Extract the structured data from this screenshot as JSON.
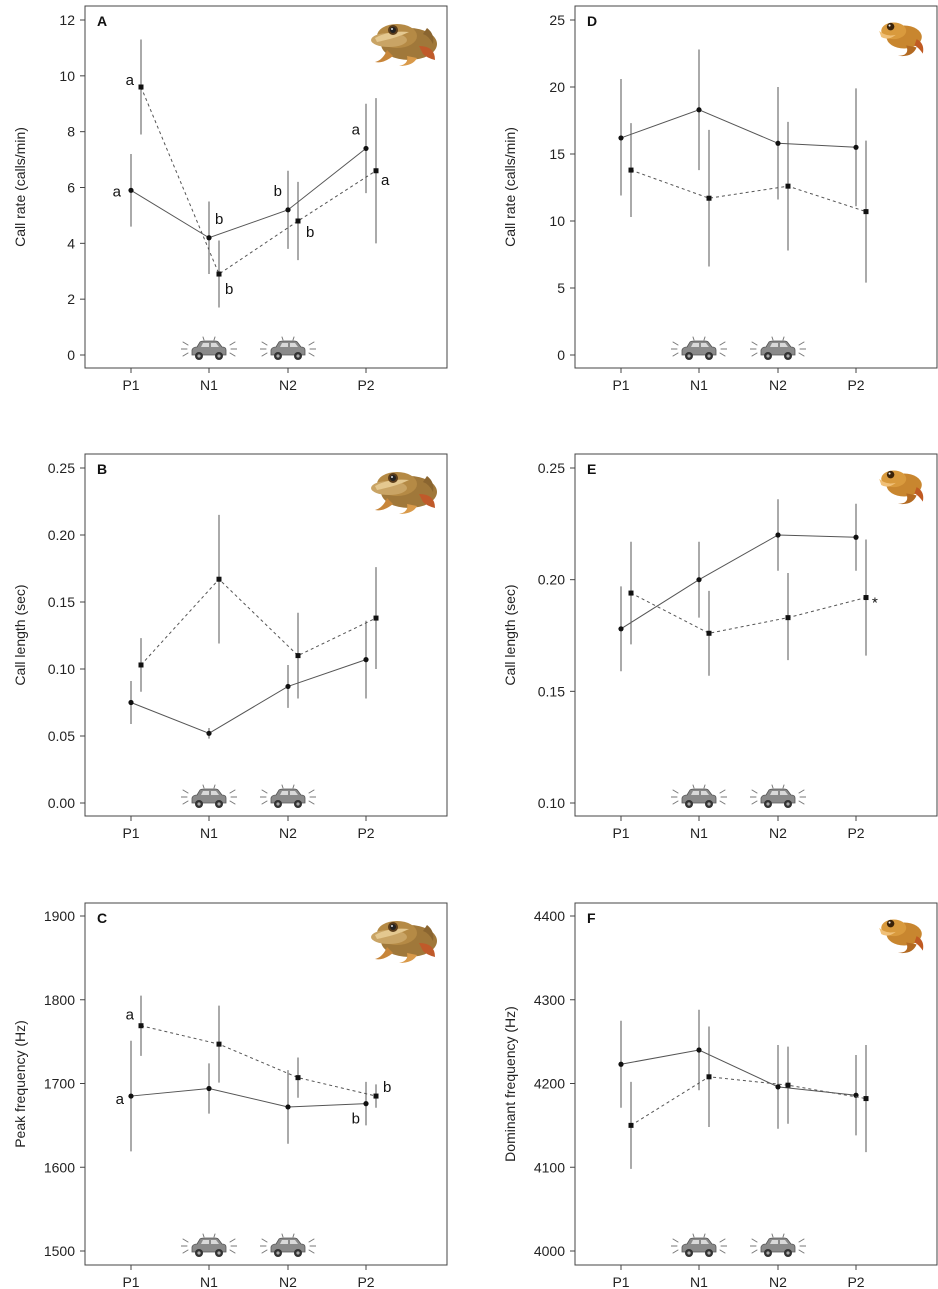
{
  "chart_data": [
    {
      "type": "line",
      "panel": "A",
      "categories": [
        "P1",
        "N1",
        "N2",
        "P2"
      ],
      "ylabel": "Call rate (calls/min)",
      "ylim": [
        0,
        12
      ],
      "yticks": [
        "0",
        "2",
        "4",
        "6",
        "8",
        "10",
        "12"
      ],
      "grid": false,
      "series": [
        {
          "style": "solid",
          "marker": "circle",
          "values": [
            5.9,
            4.2,
            5.2,
            7.4
          ],
          "err_low": [
            4.6,
            2.9,
            3.8,
            5.8
          ],
          "err_high": [
            7.2,
            5.5,
            6.6,
            9.0
          ],
          "labels": [
            "a",
            "b",
            "b",
            "a"
          ]
        },
        {
          "style": "dashed",
          "marker": "square",
          "values": [
            9.6,
            2.9,
            4.8,
            6.6
          ],
          "err_low": [
            7.9,
            1.7,
            3.4,
            4.0
          ],
          "err_high": [
            11.3,
            4.1,
            6.2,
            9.2
          ],
          "labels": [
            "a",
            "b",
            "b",
            "a"
          ]
        }
      ],
      "icon": "tree-frog-icon",
      "stimulus_icons": [
        "car-icon",
        "car-icon"
      ]
    },
    {
      "type": "line",
      "panel": "B",
      "categories": [
        "P1",
        "N1",
        "N2",
        "P2"
      ],
      "ylabel": "Call length (sec)",
      "ylim": [
        0,
        0.25
      ],
      "yticks": [
        "0.00",
        "0.05",
        "0.10",
        "0.15",
        "0.20",
        "0.25"
      ],
      "grid": false,
      "series": [
        {
          "style": "solid",
          "marker": "circle",
          "values": [
            0.075,
            0.052,
            0.087,
            0.107
          ],
          "err_low": [
            0.059,
            0.048,
            0.071,
            0.078
          ],
          "err_high": [
            0.091,
            0.056,
            0.103,
            0.136
          ],
          "labels": []
        },
        {
          "style": "dashed",
          "marker": "square",
          "values": [
            0.103,
            0.167,
            0.11,
            0.138
          ],
          "err_low": [
            0.083,
            0.119,
            0.078,
            0.1
          ],
          "err_high": [
            0.123,
            0.215,
            0.142,
            0.176
          ],
          "labels": []
        }
      ],
      "icon": "tree-frog-icon",
      "stimulus_icons": [
        "car-icon",
        "car-icon"
      ]
    },
    {
      "type": "line",
      "panel": "C",
      "categories": [
        "P1",
        "N1",
        "N2",
        "P2"
      ],
      "ylabel": "Peak frequency (Hz)",
      "ylim": [
        1500,
        1900
      ],
      "yticks": [
        "1500",
        "1600",
        "1700",
        "1800",
        "1900"
      ],
      "grid": false,
      "series": [
        {
          "style": "solid",
          "marker": "circle",
          "values": [
            1685,
            1694,
            1672,
            1676
          ],
          "err_low": [
            1619,
            1664,
            1628,
            1650
          ],
          "err_high": [
            1751,
            1724,
            1716,
            1702
          ],
          "labels": [
            "a",
            "",
            "",
            "b"
          ]
        },
        {
          "style": "dashed",
          "marker": "square",
          "values": [
            1769,
            1747,
            1707,
            1685
          ],
          "err_low": [
            1733,
            1701,
            1683,
            1671
          ],
          "err_high": [
            1805,
            1793,
            1731,
            1699
          ],
          "labels": [
            "a",
            "",
            "",
            "b"
          ]
        }
      ],
      "icon": "tree-frog-icon",
      "stimulus_icons": [
        "car-icon",
        "car-icon"
      ]
    },
    {
      "type": "line",
      "panel": "D",
      "categories": [
        "P1",
        "N1",
        "N2",
        "P2"
      ],
      "ylabel": "Call rate (calls/min)",
      "ylim": [
        0,
        25
      ],
      "yticks": [
        "0",
        "5",
        "10",
        "15",
        "20",
        "25"
      ],
      "grid": false,
      "series": [
        {
          "style": "solid",
          "marker": "circle",
          "values": [
            16.2,
            18.3,
            15.8,
            15.5
          ],
          "err_low": [
            11.9,
            13.8,
            11.6,
            11.1
          ],
          "err_high": [
            20.6,
            22.8,
            20.0,
            19.9
          ],
          "labels": []
        },
        {
          "style": "dashed",
          "marker": "square",
          "values": [
            13.8,
            11.7,
            12.6,
            10.7
          ],
          "err_low": [
            10.3,
            6.6,
            7.8,
            5.4
          ],
          "err_high": [
            17.3,
            16.8,
            17.4,
            16.0
          ],
          "labels": []
        }
      ],
      "icon": "small-frog-icon",
      "stimulus_icons": [
        "car-icon",
        "car-icon"
      ]
    },
    {
      "type": "line",
      "panel": "E",
      "categories": [
        "P1",
        "N1",
        "N2",
        "P2"
      ],
      "ylabel": "Call length (sec)",
      "ylim": [
        0.1,
        0.25
      ],
      "yticks": [
        "0.10",
        "0.15",
        "0.20",
        "0.25"
      ],
      "grid": false,
      "series": [
        {
          "style": "solid",
          "marker": "circle",
          "values": [
            0.178,
            0.2,
            0.22,
            0.219
          ],
          "err_low": [
            0.159,
            0.183,
            0.204,
            0.204
          ],
          "err_high": [
            0.197,
            0.217,
            0.236,
            0.234
          ],
          "labels": []
        },
        {
          "style": "dashed",
          "marker": "square",
          "values": [
            0.194,
            0.176,
            0.183,
            0.192
          ],
          "err_low": [
            0.171,
            0.157,
            0.164,
            0.166
          ],
          "err_high": [
            0.217,
            0.195,
            0.203,
            0.218
          ],
          "labels": [
            "",
            "",
            "",
            "*"
          ]
        }
      ],
      "icon": "small-frog-icon",
      "stimulus_icons": [
        "car-icon",
        "car-icon"
      ]
    },
    {
      "type": "line",
      "panel": "F",
      "categories": [
        "P1",
        "N1",
        "N2",
        "P2"
      ],
      "ylabel": "Dominant frequency (Hz)",
      "ylim": [
        4000,
        4400
      ],
      "yticks": [
        "4000",
        "4100",
        "4200",
        "4300",
        "4400"
      ],
      "grid": false,
      "series": [
        {
          "style": "solid",
          "marker": "circle",
          "values": [
            4223,
            4240,
            4196,
            4186
          ],
          "err_low": [
            4171,
            4192,
            4146,
            4138
          ],
          "err_high": [
            4275,
            4288,
            4246,
            4234
          ],
          "labels": []
        },
        {
          "style": "dashed",
          "marker": "square",
          "values": [
            4150,
            4208,
            4198,
            4182
          ],
          "err_low": [
            4098,
            4148,
            4152,
            4118
          ],
          "err_high": [
            4202,
            4268,
            4244,
            4246
          ],
          "labels": []
        }
      ],
      "icon": "small-frog-icon",
      "stimulus_icons": [
        "car-icon",
        "car-icon"
      ]
    }
  ]
}
